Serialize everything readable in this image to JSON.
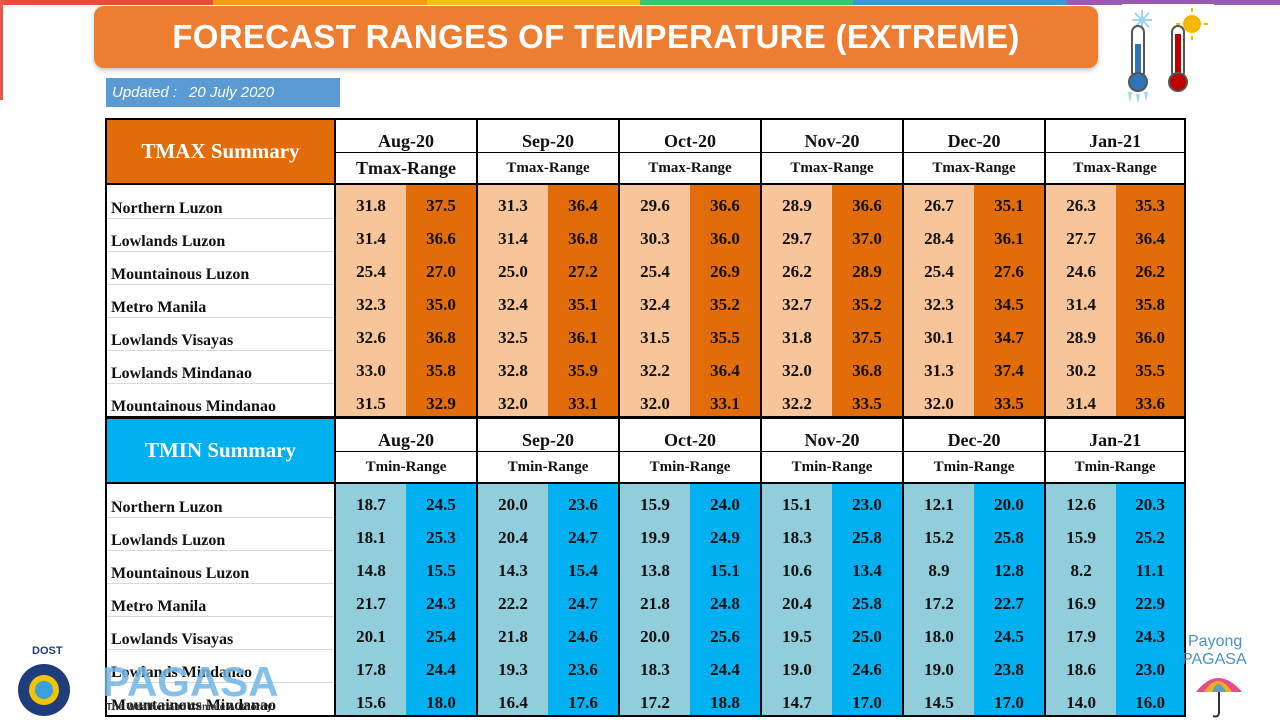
{
  "title": "FORECAST RANGES OF TEMPERATURE (EXTREME)",
  "updated": {
    "label": "Updated :",
    "date": "20 July 2020"
  },
  "months": [
    "Aug-20",
    "Sep-20",
    "Oct-20",
    "Nov-20",
    "Dec-20",
    "Jan-21"
  ],
  "colors": {
    "tmax_dark": "#e36c0a",
    "tmax_light": "#f8c59b",
    "tmin_dark": "#00b0f0",
    "tmin_light": "#92cddc",
    "title": "#ed7d31",
    "updated": "#5b9bd5"
  },
  "tmax": {
    "heading": "TMAX Summary",
    "range_label": "Tmax-Range",
    "rows": [
      {
        "region": "Northern Luzon",
        "values": [
          "31.8",
          "37.5",
          "31.3",
          "36.4",
          "29.6",
          "36.6",
          "28.9",
          "36.6",
          "26.7",
          "35.1",
          "26.3",
          "35.3"
        ]
      },
      {
        "region": "Lowlands Luzon",
        "values": [
          "31.4",
          "36.6",
          "31.4",
          "36.8",
          "30.3",
          "36.0",
          "29.7",
          "37.0",
          "28.4",
          "36.1",
          "27.7",
          "36.4"
        ]
      },
      {
        "region": "Mountainous Luzon",
        "values": [
          "25.4",
          "27.0",
          "25.0",
          "27.2",
          "25.4",
          "26.9",
          "26.2",
          "28.9",
          "25.4",
          "27.6",
          "24.6",
          "26.2"
        ]
      },
      {
        "region": "Metro Manila",
        "values": [
          "32.3",
          "35.0",
          "32.4",
          "35.1",
          "32.4",
          "35.2",
          "32.7",
          "35.2",
          "32.3",
          "34.5",
          "31.4",
          "35.8"
        ]
      },
      {
        "region": "Lowlands Visayas",
        "values": [
          "32.6",
          "36.8",
          "32.5",
          "36.1",
          "31.5",
          "35.5",
          "31.8",
          "37.5",
          "30.1",
          "34.7",
          "28.9",
          "36.0"
        ]
      },
      {
        "region": "Lowlands Mindanao",
        "values": [
          "33.0",
          "35.8",
          "32.8",
          "35.9",
          "32.2",
          "36.4",
          "32.0",
          "36.8",
          "31.3",
          "37.4",
          "30.2",
          "35.5"
        ]
      },
      {
        "region": "Mountainous Mindanao",
        "values": [
          "31.5",
          "32.9",
          "32.0",
          "33.1",
          "32.0",
          "33.1",
          "32.2",
          "33.5",
          "32.0",
          "33.5",
          "31.4",
          "33.6"
        ]
      }
    ]
  },
  "tmin": {
    "heading": "TMIN Summary",
    "range_label": "Tmin-Range",
    "rows": [
      {
        "region": "Northern Luzon",
        "values": [
          "18.7",
          "24.5",
          "20.0",
          "23.6",
          "15.9",
          "24.0",
          "15.1",
          "23.0",
          "12.1",
          "20.0",
          "12.6",
          "20.3"
        ]
      },
      {
        "region": "Lowlands Luzon",
        "values": [
          "18.1",
          "25.3",
          "20.4",
          "24.7",
          "19.9",
          "24.9",
          "18.3",
          "25.8",
          "15.2",
          "25.8",
          "15.9",
          "25.2"
        ]
      },
      {
        "region": "Mountainous Luzon",
        "values": [
          "14.8",
          "15.5",
          "14.3",
          "15.4",
          "13.8",
          "15.1",
          "10.6",
          "13.4",
          "8.9",
          "12.8",
          "8.2",
          "11.1"
        ]
      },
      {
        "region": "Metro Manila",
        "values": [
          "21.7",
          "24.3",
          "22.2",
          "24.7",
          "21.8",
          "24.8",
          "20.4",
          "25.8",
          "17.2",
          "22.7",
          "16.9",
          "22.9"
        ]
      },
      {
        "region": "Lowlands Visayas",
        "values": [
          "20.1",
          "25.4",
          "21.8",
          "24.6",
          "20.0",
          "25.6",
          "19.5",
          "25.0",
          "18.0",
          "24.5",
          "17.9",
          "24.3"
        ]
      },
      {
        "region": "Lowlands Mindanao",
        "values": [
          "17.8",
          "24.4",
          "19.3",
          "23.6",
          "18.3",
          "24.4",
          "19.0",
          "24.6",
          "19.0",
          "23.8",
          "18.6",
          "23.0"
        ]
      },
      {
        "region": "Mountainous Mindanao",
        "values": [
          "15.6",
          "18.0",
          "16.4",
          "17.6",
          "17.2",
          "18.8",
          "14.7",
          "17.0",
          "14.5",
          "17.0",
          "14.0",
          "16.0"
        ]
      }
    ]
  },
  "logos": {
    "dost": "DOST",
    "pagasa": "PAGASA",
    "pagasa_tagline": "The Weather and Climate Authority",
    "payong_line1": "Payong",
    "payong_line2": "PAGASA"
  }
}
